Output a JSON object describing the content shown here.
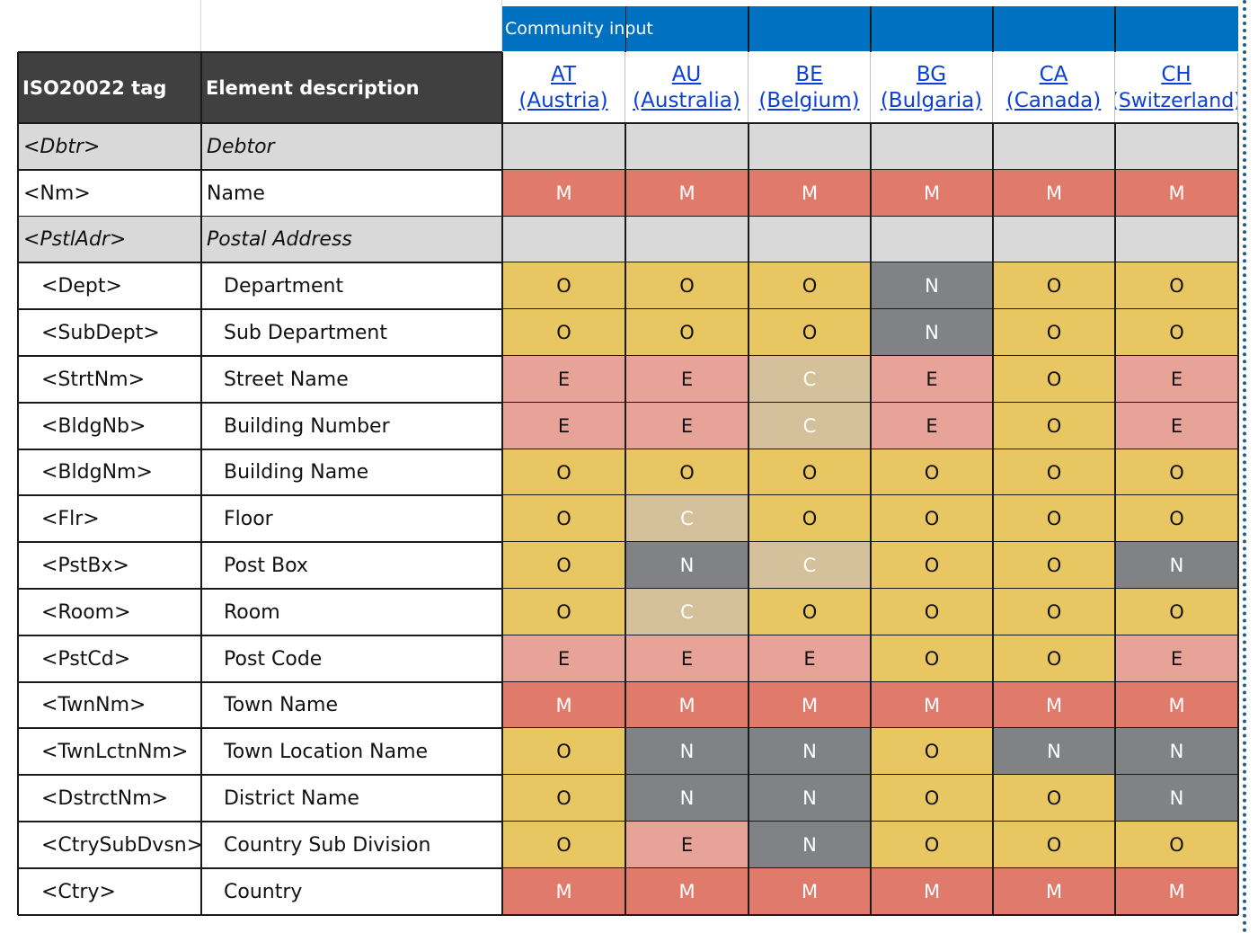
{
  "header": {
    "community_label": "Community input",
    "col_tag": "ISO20022 tag",
    "col_desc": "Element description"
  },
  "countries": [
    {
      "code": "AT",
      "name": "(Austria)"
    },
    {
      "code": "AU",
      "name": "(Australia)"
    },
    {
      "code": "BE",
      "name": "(Belgium)"
    },
    {
      "code": "BG ",
      "name": "(Bulgaria)"
    },
    {
      "code": "CA",
      "name": "(Canada)"
    },
    {
      "code": "CH ",
      "name": "(Switzerland)"
    }
  ],
  "rows": [
    {
      "tag": "<Dbtr>",
      "desc": "Debtor",
      "section": true,
      "values": [
        "",
        "",
        "",
        "",
        "",
        ""
      ]
    },
    {
      "tag": "<Nm>",
      "desc": "Name",
      "section": false,
      "indent": false,
      "values": [
        "M",
        "M",
        "M",
        "M",
        "M",
        "M"
      ]
    },
    {
      "tag": "<PstlAdr>",
      "desc": "Postal Address",
      "section": true,
      "values": [
        "",
        "",
        "",
        "",
        "",
        ""
      ]
    },
    {
      "tag": "<Dept>",
      "desc": "Department",
      "section": false,
      "indent": true,
      "values": [
        "O",
        "O",
        "O",
        "N",
        "O",
        "O"
      ]
    },
    {
      "tag": "<SubDept>",
      "desc": "Sub Department",
      "section": false,
      "indent": true,
      "values": [
        "O",
        "O",
        "O",
        "N",
        "O",
        "O"
      ]
    },
    {
      "tag": "<StrtNm>",
      "desc": "Street Name",
      "section": false,
      "indent": true,
      "values": [
        "E",
        "E",
        "C",
        "E",
        "O",
        "E"
      ]
    },
    {
      "tag": "<BldgNb>",
      "desc": "Building Number",
      "section": false,
      "indent": true,
      "values": [
        "E",
        "E",
        "C",
        "E",
        "O",
        "E"
      ]
    },
    {
      "tag": "<BldgNm>",
      "desc": "Building Name",
      "section": false,
      "indent": true,
      "values": [
        "O",
        "O",
        "O",
        "O",
        "O",
        "O"
      ]
    },
    {
      "tag": "<Flr>",
      "desc": "Floor",
      "section": false,
      "indent": true,
      "values": [
        "O",
        "C",
        "O",
        "O",
        "O",
        "O"
      ]
    },
    {
      "tag": "<PstBx>",
      "desc": "Post Box",
      "section": false,
      "indent": true,
      "values": [
        "O",
        "N",
        "C",
        "O",
        "O",
        "N"
      ]
    },
    {
      "tag": "<Room>",
      "desc": "Room",
      "section": false,
      "indent": true,
      "values": [
        "O",
        "C",
        "O",
        "O",
        "O",
        "O"
      ]
    },
    {
      "tag": "<PstCd>",
      "desc": "Post Code",
      "section": false,
      "indent": true,
      "values": [
        "E",
        "E",
        "E",
        "O",
        "O",
        "E"
      ]
    },
    {
      "tag": "<TwnNm>",
      "desc": "Town Name",
      "section": false,
      "indent": true,
      "values": [
        "M",
        "M",
        "M",
        "M",
        "M",
        "M"
      ]
    },
    {
      "tag": "<TwnLctnNm>",
      "desc": "Town Location Name",
      "section": false,
      "indent": true,
      "values": [
        "O",
        "N",
        "N",
        "O",
        "N",
        "N"
      ]
    },
    {
      "tag": "<DstrctNm>",
      "desc": "District Name",
      "section": false,
      "indent": true,
      "values": [
        "O",
        "N",
        "N",
        "O",
        "O",
        "N"
      ]
    },
    {
      "tag": "<CtrySubDvsn>",
      "desc": "Country Sub Division",
      "section": false,
      "indent": true,
      "values": [
        "O",
        "E",
        "N",
        "O",
        "O",
        "O"
      ]
    },
    {
      "tag": "<Ctry>",
      "desc": "Country",
      "section": false,
      "indent": true,
      "values": [
        "M",
        "M",
        "M",
        "M",
        "M",
        "M"
      ]
    }
  ],
  "colors": {
    "M": "#e07a6a",
    "E": "#e8a398",
    "O": "#e8c662",
    "N": "#808285",
    "C": "#d4c09a",
    "section": "#d9d9d9",
    "header_dark": "#404040",
    "community_blue": "#0070c0"
  }
}
